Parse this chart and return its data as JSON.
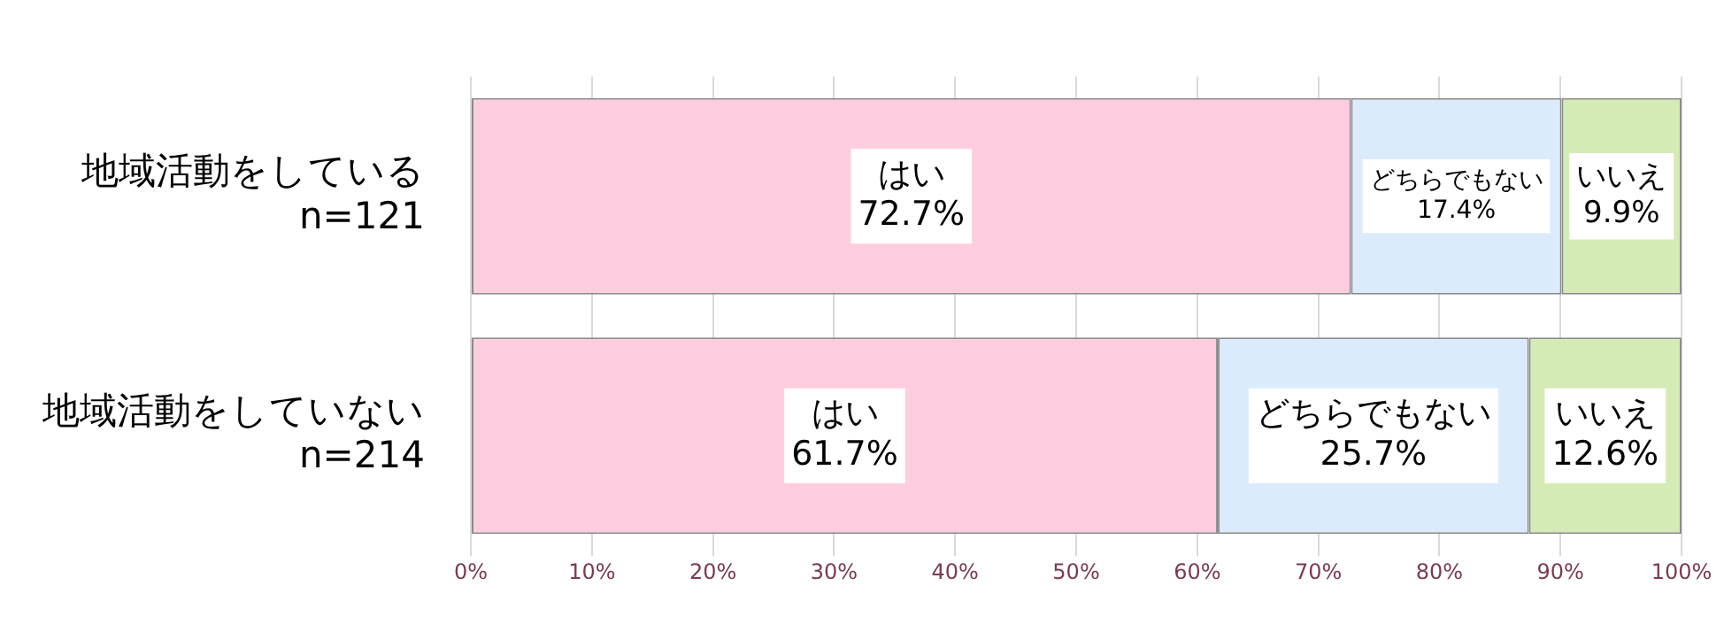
{
  "chart_data": {
    "type": "bar",
    "orientation": "horizontal",
    "stacked": true,
    "categories": [
      "地域活動をしている\nn=121",
      "地域活動をしていない\nn=214"
    ],
    "series": [
      {
        "name": "はい",
        "color": "#ffcce0",
        "values": [
          72.7,
          61.7
        ],
        "value_labels": [
          "72.7%",
          "61.7%"
        ]
      },
      {
        "name": "どちらでもない",
        "color": "#dcebfc",
        "values": [
          17.4,
          25.7
        ],
        "value_labels": [
          "17.4%",
          "25.7%"
        ]
      },
      {
        "name": "いいえ",
        "color": "#d5ebb5",
        "values": [
          9.9,
          12.6
        ],
        "value_labels": [
          "9.9%",
          "12.6%"
        ]
      }
    ],
    "xlim": [
      0,
      100
    ],
    "xticks": [
      {
        "value": 0,
        "label": "0%"
      },
      {
        "value": 10,
        "label": "10%"
      },
      {
        "value": 20,
        "label": "20%"
      },
      {
        "value": 30,
        "label": "30%"
      },
      {
        "value": 40,
        "label": "40%"
      },
      {
        "value": 50,
        "label": "50%"
      },
      {
        "value": 60,
        "label": "60%"
      },
      {
        "value": 70,
        "label": "70%"
      },
      {
        "value": 80,
        "label": "80%"
      },
      {
        "value": 90,
        "label": "90%"
      },
      {
        "value": 100,
        "label": "100%"
      }
    ],
    "grid": "x",
    "legend": false
  }
}
